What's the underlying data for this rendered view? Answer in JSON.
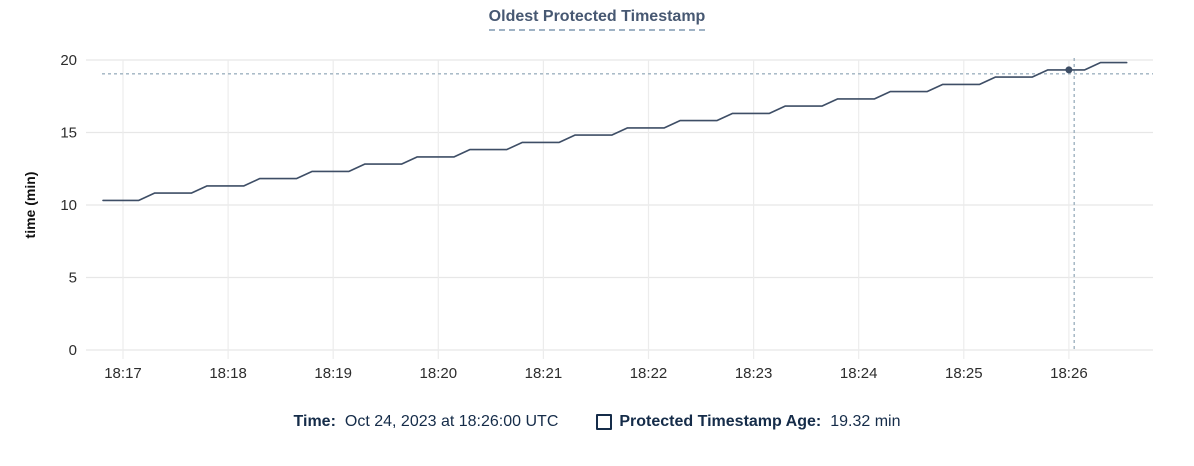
{
  "header": {
    "title": "Oldest Protected Timestamp"
  },
  "chart_data": {
    "type": "line",
    "title": "Oldest Protected Timestamp",
    "xlabel": "",
    "ylabel": "time (min)",
    "ylim": [
      0,
      20
    ],
    "yticks": [
      0,
      5,
      10,
      15,
      20
    ],
    "xticks": [
      "18:17",
      "18:18",
      "18:19",
      "18:20",
      "18:21",
      "18:22",
      "18:23",
      "18:24",
      "18:25",
      "18:26"
    ],
    "x_unit": "minutes after 18:17 UTC",
    "grid": true,
    "legend_position": "bottom",
    "series": [
      {
        "name": "Protected Timestamp Age",
        "color": "#3e4e66",
        "points": [
          [
            -0.19,
            10.32
          ],
          [
            0.15,
            10.32
          ],
          [
            0.3,
            10.82
          ],
          [
            0.65,
            10.82
          ],
          [
            0.8,
            11.32
          ],
          [
            1.15,
            11.32
          ],
          [
            1.3,
            11.82
          ],
          [
            1.65,
            11.82
          ],
          [
            1.8,
            12.32
          ],
          [
            2.15,
            12.32
          ],
          [
            2.3,
            12.82
          ],
          [
            2.65,
            12.82
          ],
          [
            2.8,
            13.32
          ],
          [
            3.15,
            13.32
          ],
          [
            3.3,
            13.82
          ],
          [
            3.65,
            13.82
          ],
          [
            3.8,
            14.32
          ],
          [
            4.15,
            14.32
          ],
          [
            4.3,
            14.82
          ],
          [
            4.65,
            14.82
          ],
          [
            4.8,
            15.32
          ],
          [
            5.15,
            15.32
          ],
          [
            5.3,
            15.82
          ],
          [
            5.65,
            15.82
          ],
          [
            5.8,
            16.32
          ],
          [
            6.15,
            16.32
          ],
          [
            6.3,
            16.82
          ],
          [
            6.65,
            16.82
          ],
          [
            6.8,
            17.32
          ],
          [
            7.15,
            17.32
          ],
          [
            7.3,
            17.82
          ],
          [
            7.65,
            17.82
          ],
          [
            7.8,
            18.32
          ],
          [
            8.15,
            18.32
          ],
          [
            8.3,
            18.82
          ],
          [
            8.65,
            18.82
          ],
          [
            8.8,
            19.32
          ],
          [
            9.15,
            19.32
          ],
          [
            9.3,
            19.82
          ],
          [
            9.55,
            19.82
          ]
        ]
      }
    ],
    "hover": {
      "point_t": 9.0,
      "point_v": 19.32,
      "vline_t": 9.05,
      "hline_value": 19.05
    }
  },
  "footer": {
    "time_label": "Time:",
    "time_value": "Oct 24, 2023 at 18:26:00 UTC",
    "age_label": "Protected Timestamp Age:",
    "age_value": "19.32 min"
  },
  "colors": {
    "title": "#475872",
    "footer_text": "#152c49",
    "axis_text": "#2d2d2d",
    "grid_h": "#e7e7e7",
    "grid_v": "#ececec",
    "line": "#3e4e66",
    "crosshair": "#9fb2c0",
    "background": "#ffffff"
  }
}
